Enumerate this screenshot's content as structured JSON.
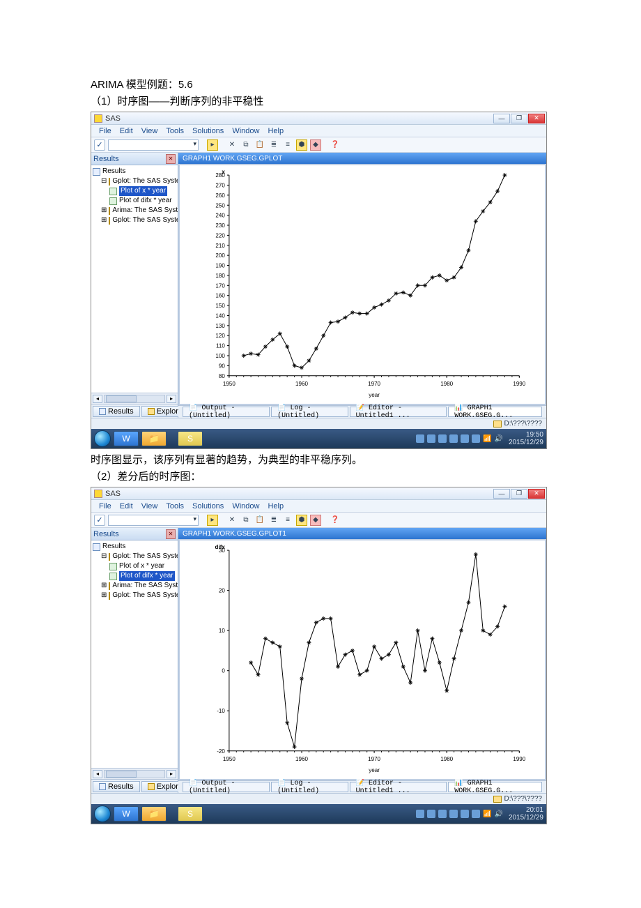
{
  "doc": {
    "title": "ARIMA 模型例题：5.6",
    "section1": "（1）时序图——判断序列的非平稳性",
    "caption1": "时序图显示，该序列有显著的趋势，为典型的非平稳序列。",
    "section2": "（2）差分后的时序图："
  },
  "sas": {
    "app_title": "SAS",
    "menus": [
      "File",
      "Edit",
      "View",
      "Tools",
      "Solutions",
      "Window",
      "Help"
    ],
    "results_panel_title": "Results",
    "tree_root": "Results",
    "tree_gplot": "Gplot: The SAS System",
    "tree_leaf_x": "Plot of x * year",
    "tree_leaf_difx": "Plot of difx * year",
    "tree_arima": "Arima: The SAS System",
    "tree_gplot2": "Gplot: The SAS System",
    "pane_tab_results": "Results",
    "pane_tab_explorer": "Explorer",
    "doc_tab_output": "Output - (Untitled)",
    "doc_tab_log": "Log - (Untitled)",
    "doc_tab_editor": "Editor - Untitled1 ...",
    "doc_tab_graph": "GRAPH1  WORK.GSEG.G...",
    "status_path": "D:\\???\\????"
  },
  "screenshot1": {
    "graph_title": "GRAPH1  WORK.GSEG.GPLOT",
    "selected_tree": "x",
    "xlabel": "year",
    "ylabel": "x",
    "xlim": [
      1950,
      1990
    ],
    "ylim": [
      80,
      280
    ],
    "xtick_step": 10,
    "ytick_step": 10,
    "xticks": [
      1950,
      1960,
      1970,
      1980,
      1990
    ],
    "axis_font_size": 8,
    "line_color": "#000000",
    "marker": "star",
    "background_color": "#ffffff",
    "series": [
      {
        "year": 1952,
        "x": 100
      },
      {
        "year": 1953,
        "x": 102
      },
      {
        "year": 1954,
        "x": 101
      },
      {
        "year": 1955,
        "x": 109
      },
      {
        "year": 1956,
        "x": 116
      },
      {
        "year": 1957,
        "x": 122
      },
      {
        "year": 1958,
        "x": 109
      },
      {
        "year": 1959,
        "x": 90
      },
      {
        "year": 1960,
        "x": 88
      },
      {
        "year": 1961,
        "x": 95
      },
      {
        "year": 1962,
        "x": 107
      },
      {
        "year": 1963,
        "x": 120
      },
      {
        "year": 1964,
        "x": 133
      },
      {
        "year": 1965,
        "x": 134
      },
      {
        "year": 1966,
        "x": 138
      },
      {
        "year": 1967,
        "x": 143
      },
      {
        "year": 1968,
        "x": 142
      },
      {
        "year": 1969,
        "x": 142
      },
      {
        "year": 1970,
        "x": 148
      },
      {
        "year": 1971,
        "x": 151
      },
      {
        "year": 1972,
        "x": 155
      },
      {
        "year": 1973,
        "x": 162
      },
      {
        "year": 1974,
        "x": 163
      },
      {
        "year": 1975,
        "x": 160
      },
      {
        "year": 1976,
        "x": 170
      },
      {
        "year": 1977,
        "x": 170
      },
      {
        "year": 1978,
        "x": 178
      },
      {
        "year": 1979,
        "x": 180
      },
      {
        "year": 1980,
        "x": 175
      },
      {
        "year": 1981,
        "x": 178
      },
      {
        "year": 1982,
        "x": 188
      },
      {
        "year": 1983,
        "x": 205
      },
      {
        "year": 1984,
        "x": 234
      },
      {
        "year": 1985,
        "x": 244
      },
      {
        "year": 1986,
        "x": 253
      },
      {
        "year": 1987,
        "x": 264
      },
      {
        "year": 1988,
        "x": 280
      }
    ],
    "clock_time": "19:50",
    "clock_date": "2015/12/29"
  },
  "screenshot2": {
    "graph_title": "GRAPH1  WORK.GSEG.GPLOT1",
    "selected_tree": "difx",
    "xlabel": "year",
    "ylabel": "difx",
    "xlim": [
      1950,
      1990
    ],
    "ylim": [
      -20,
      30
    ],
    "xtick_step": 10,
    "ytick_step": 10,
    "xticks": [
      1950,
      1960,
      1970,
      1980,
      1990
    ],
    "yticks": [
      -20,
      -10,
      0,
      10,
      20,
      30
    ],
    "axis_font_size": 8,
    "line_color": "#000000",
    "marker": "star",
    "background_color": "#ffffff",
    "series": [
      {
        "year": 1953,
        "difx": 2
      },
      {
        "year": 1954,
        "difx": -1
      },
      {
        "year": 1955,
        "difx": 8
      },
      {
        "year": 1956,
        "difx": 7
      },
      {
        "year": 1957,
        "difx": 6
      },
      {
        "year": 1958,
        "difx": -13
      },
      {
        "year": 1959,
        "difx": -19
      },
      {
        "year": 1960,
        "difx": -2
      },
      {
        "year": 1961,
        "difx": 7
      },
      {
        "year": 1962,
        "difx": 12
      },
      {
        "year": 1963,
        "difx": 13
      },
      {
        "year": 1964,
        "difx": 13
      },
      {
        "year": 1965,
        "difx": 1
      },
      {
        "year": 1966,
        "difx": 4
      },
      {
        "year": 1967,
        "difx": 5
      },
      {
        "year": 1968,
        "difx": -1
      },
      {
        "year": 1969,
        "difx": 0
      },
      {
        "year": 1970,
        "difx": 6
      },
      {
        "year": 1971,
        "difx": 3
      },
      {
        "year": 1972,
        "difx": 4
      },
      {
        "year": 1973,
        "difx": 7
      },
      {
        "year": 1974,
        "difx": 1
      },
      {
        "year": 1975,
        "difx": -3
      },
      {
        "year": 1976,
        "difx": 10
      },
      {
        "year": 1977,
        "difx": 0
      },
      {
        "year": 1978,
        "difx": 8
      },
      {
        "year": 1979,
        "difx": 2
      },
      {
        "year": 1980,
        "difx": -5
      },
      {
        "year": 1981,
        "difx": 3
      },
      {
        "year": 1982,
        "difx": 10
      },
      {
        "year": 1983,
        "difx": 17
      },
      {
        "year": 1984,
        "difx": 29
      },
      {
        "year": 1985,
        "difx": 10
      },
      {
        "year": 1986,
        "difx": 9
      },
      {
        "year": 1987,
        "difx": 11
      },
      {
        "year": 1988,
        "difx": 16
      }
    ],
    "clock_time": "20:01",
    "clock_date": "2015/12/29"
  },
  "win_buttons": {
    "min": "—",
    "max": "❐",
    "close": "✕"
  },
  "tb_icons": {
    "word": "W",
    "folder": "📁",
    "sas": "S"
  },
  "colors": {
    "titlebar_grad_top": "#f5f9ff",
    "titlebar_grad_bot": "#dce8f6",
    "menubar_bg": "#eef4fb",
    "menubar_text": "#1a4b8c",
    "client_bg": "#c9d6e8",
    "graph_header_top": "#62a5f3",
    "graph_header_bot": "#2d74d0",
    "taskbar_top": "#3a5a85",
    "taskbar_bot": "#1e3a5a",
    "selection": "#1e56c8"
  }
}
